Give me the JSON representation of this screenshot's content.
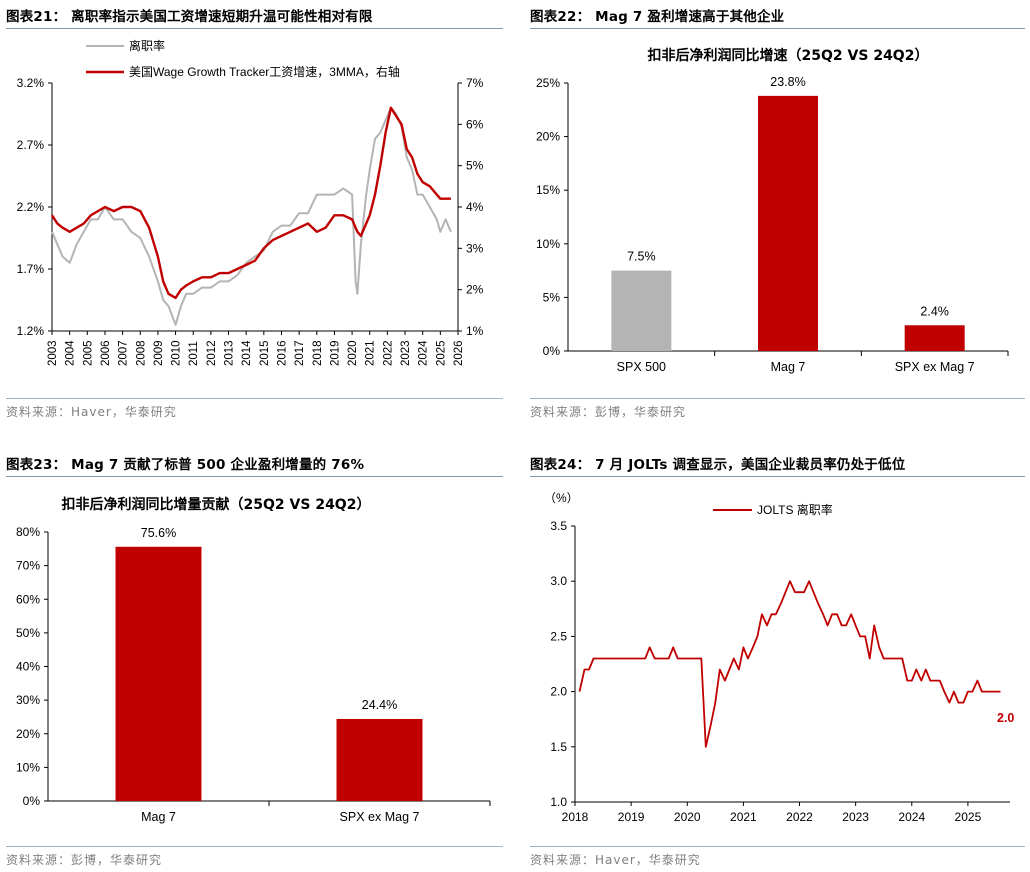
{
  "colors": {
    "red": "#c00000",
    "gray": "#b4b4b4",
    "rule": "#7f9bb8",
    "source": "#808080"
  },
  "panels": {
    "p21": {
      "heading": "图表21：  离职率指示美国工资增速短期升温可能性相对有限",
      "source": "资料来源：Haver，华泰研究",
      "legend_left": "离职率",
      "legend_right": "美国Wage Growth Tracker工资增速，3MMA，右轴"
    },
    "p22": {
      "heading": "图表22：  Mag 7 盈利增速高于其他企业",
      "source": "资料来源：彭博，华泰研究"
    },
    "p23": {
      "heading": "图表23：  Mag 7 贡献了标普 500 企业盈利增量的 76%",
      "source": "资料来源：彭博，华泰研究"
    },
    "p24": {
      "heading": "图表24：  7 月 JOLTs 调查显示，美国企业裁员率仍处于低位",
      "source": "资料来源：Haver，华泰研究"
    }
  },
  "chart_data": [
    {
      "id": "c21",
      "type": "line",
      "title": "",
      "x_start": 2003,
      "x_end": 2026,
      "x_ticks": [
        "2003",
        "2004",
        "2005",
        "2006",
        "2007",
        "2008",
        "2009",
        "2010",
        "2011",
        "2012",
        "2013",
        "2014",
        "2015",
        "2016",
        "2017",
        "2018",
        "2019",
        "2020",
        "2021",
        "2022",
        "2023",
        "2024",
        "2025",
        "2026"
      ],
      "left_axis": {
        "ylim": [
          1.2,
          3.2
        ],
        "ticks": [
          "1.2%",
          "1.7%",
          "2.2%",
          "2.7%",
          "3.2%"
        ],
        "tick_values": [
          1.2,
          1.7,
          2.2,
          2.7,
          3.2
        ]
      },
      "right_axis": {
        "ylim": [
          1,
          7
        ],
        "ticks": [
          "1%",
          "2%",
          "3%",
          "4%",
          "5%",
          "6%",
          "7%"
        ],
        "tick_values": [
          1,
          2,
          3,
          4,
          5,
          6,
          7
        ]
      },
      "series": [
        {
          "name": "离职率",
          "axis": "left",
          "color": "gray",
          "x": [
            2003.0,
            2003.3,
            2003.6,
            2004.0,
            2004.4,
            2004.8,
            2005.2,
            2005.6,
            2006.0,
            2006.5,
            2007.0,
            2007.5,
            2008.0,
            2008.5,
            2009.0,
            2009.3,
            2009.6,
            2010.0,
            2010.3,
            2010.6,
            2011.0,
            2011.5,
            2012.0,
            2012.5,
            2013.0,
            2013.5,
            2014.0,
            2014.5,
            2015.0,
            2015.5,
            2016.0,
            2016.5,
            2017.0,
            2017.5,
            2018.0,
            2018.5,
            2019.0,
            2019.5,
            2020.0,
            2020.2,
            2020.3,
            2020.5,
            2020.8,
            2021.0,
            2021.3,
            2021.6,
            2021.9,
            2022.2,
            2022.5,
            2022.8,
            2023.1,
            2023.4,
            2023.7,
            2024.0,
            2024.4,
            2024.8,
            2025.0,
            2025.3,
            2025.6
          ],
          "values": [
            2.0,
            1.9,
            1.8,
            1.75,
            1.9,
            2.0,
            2.1,
            2.1,
            2.2,
            2.1,
            2.1,
            2.0,
            1.95,
            1.8,
            1.6,
            1.45,
            1.4,
            1.25,
            1.4,
            1.5,
            1.5,
            1.55,
            1.55,
            1.6,
            1.6,
            1.65,
            1.75,
            1.8,
            1.85,
            2.0,
            2.05,
            2.05,
            2.15,
            2.15,
            2.3,
            2.3,
            2.3,
            2.35,
            2.3,
            1.6,
            1.5,
            1.9,
            2.3,
            2.5,
            2.75,
            2.8,
            2.9,
            3.0,
            2.95,
            2.85,
            2.6,
            2.5,
            2.3,
            2.3,
            2.2,
            2.1,
            2.0,
            2.1,
            2.0
          ]
        },
        {
          "name": "美国Wage Growth Tracker工资增速，3MMA，右轴",
          "axis": "right",
          "color": "red",
          "x": [
            2003.0,
            2003.3,
            2003.6,
            2004.0,
            2004.4,
            2004.8,
            2005.2,
            2005.6,
            2006.0,
            2006.5,
            2007.0,
            2007.5,
            2008.0,
            2008.5,
            2009.0,
            2009.3,
            2009.6,
            2010.0,
            2010.3,
            2010.6,
            2011.0,
            2011.5,
            2012.0,
            2012.5,
            2013.0,
            2013.5,
            2014.0,
            2014.5,
            2015.0,
            2015.5,
            2016.0,
            2016.5,
            2017.0,
            2017.5,
            2018.0,
            2018.5,
            2019.0,
            2019.5,
            2020.0,
            2020.2,
            2020.3,
            2020.5,
            2020.8,
            2021.0,
            2021.3,
            2021.6,
            2021.9,
            2022.2,
            2022.5,
            2022.8,
            2023.1,
            2023.4,
            2023.7,
            2024.0,
            2024.4,
            2024.8,
            2025.0,
            2025.3,
            2025.6
          ],
          "values": [
            3.8,
            3.6,
            3.5,
            3.4,
            3.5,
            3.6,
            3.8,
            3.9,
            4.0,
            3.9,
            4.0,
            4.0,
            3.9,
            3.5,
            2.8,
            2.2,
            1.9,
            1.8,
            2.0,
            2.1,
            2.2,
            2.3,
            2.3,
            2.4,
            2.4,
            2.5,
            2.6,
            2.7,
            3.0,
            3.2,
            3.3,
            3.4,
            3.5,
            3.6,
            3.4,
            3.5,
            3.8,
            3.8,
            3.7,
            3.5,
            3.4,
            3.3,
            3.6,
            3.8,
            4.3,
            5.0,
            5.8,
            6.4,
            6.2,
            6.0,
            5.4,
            5.2,
            4.8,
            4.6,
            4.5,
            4.3,
            4.2,
            4.2,
            4.2
          ]
        }
      ]
    },
    {
      "id": "c22",
      "type": "bar",
      "title": "扣非后净利润同比增速（25Q2 VS 24Q2）",
      "categories": [
        "SPX 500",
        "Mag 7",
        "SPX ex Mag 7"
      ],
      "values": [
        7.5,
        23.8,
        2.4
      ],
      "data_labels": [
        "7.5%",
        "23.8%",
        "2.4%"
      ],
      "bar_colors": [
        "gray",
        "red",
        "red"
      ],
      "ylim": [
        0,
        25
      ],
      "ticks": [
        "0%",
        "5%",
        "10%",
        "15%",
        "20%",
        "25%"
      ],
      "tick_values": [
        0,
        5,
        10,
        15,
        20,
        25
      ]
    },
    {
      "id": "c23",
      "type": "bar",
      "title": "扣非后净利润同比增量贡献（25Q2 VS 24Q2）",
      "categories": [
        "Mag 7",
        "SPX ex Mag 7"
      ],
      "values": [
        75.6,
        24.4
      ],
      "data_labels": [
        "75.6%",
        "24.4%"
      ],
      "bar_colors": [
        "red",
        "red"
      ],
      "ylim": [
        0,
        80
      ],
      "ticks": [
        "0%",
        "10%",
        "20%",
        "30%",
        "40%",
        "50%",
        "60%",
        "70%",
        "80%"
      ],
      "tick_values": [
        0,
        10,
        20,
        30,
        40,
        50,
        60,
        70,
        80
      ]
    },
    {
      "id": "c24",
      "type": "line",
      "title": "",
      "unit_label": "（%）",
      "legend": "JOLTS 离职率",
      "end_label": "2.0",
      "ylim": [
        1.0,
        3.5
      ],
      "ticks": [
        "1.0",
        "1.5",
        "2.0",
        "2.5",
        "3.0",
        "3.5"
      ],
      "tick_values": [
        1.0,
        1.5,
        2.0,
        2.5,
        3.0,
        3.5
      ],
      "x_ticks": [
        "2018",
        "2019",
        "2020",
        "2021",
        "2022",
        "2023",
        "2024",
        "2025"
      ],
      "x_tick_values": [
        2018,
        2019,
        2020,
        2021,
        2022,
        2023,
        2024,
        2025
      ],
      "xlim": [
        2018,
        2025.75
      ],
      "series": [
        {
          "name": "JOLTS 离职率",
          "color": "red",
          "x": [
            2018.08,
            2018.17,
            2018.25,
            2018.33,
            2018.42,
            2018.5,
            2018.58,
            2018.67,
            2018.75,
            2018.83,
            2018.92,
            2019.0,
            2019.08,
            2019.17,
            2019.25,
            2019.33,
            2019.42,
            2019.5,
            2019.58,
            2019.67,
            2019.75,
            2019.83,
            2019.92,
            2020.0,
            2020.08,
            2020.17,
            2020.25,
            2020.33,
            2020.42,
            2020.5,
            2020.58,
            2020.67,
            2020.75,
            2020.83,
            2020.92,
            2021.0,
            2021.08,
            2021.17,
            2021.25,
            2021.33,
            2021.42,
            2021.5,
            2021.58,
            2021.67,
            2021.75,
            2021.83,
            2021.92,
            2022.0,
            2022.08,
            2022.17,
            2022.25,
            2022.33,
            2022.42,
            2022.5,
            2022.58,
            2022.67,
            2022.75,
            2022.83,
            2022.92,
            2023.0,
            2023.08,
            2023.17,
            2023.25,
            2023.33,
            2023.42,
            2023.5,
            2023.58,
            2023.67,
            2023.75,
            2023.83,
            2023.92,
            2024.0,
            2024.08,
            2024.17,
            2024.25,
            2024.33,
            2024.42,
            2024.5,
            2024.58,
            2024.67,
            2024.75,
            2024.83,
            2024.92,
            2025.0,
            2025.08,
            2025.17,
            2025.25,
            2025.33,
            2025.42,
            2025.5,
            2025.58
          ],
          "values": [
            2.0,
            2.2,
            2.2,
            2.3,
            2.3,
            2.3,
            2.3,
            2.3,
            2.3,
            2.3,
            2.3,
            2.3,
            2.3,
            2.3,
            2.3,
            2.4,
            2.3,
            2.3,
            2.3,
            2.3,
            2.4,
            2.3,
            2.3,
            2.3,
            2.3,
            2.3,
            2.3,
            1.5,
            1.7,
            1.9,
            2.2,
            2.1,
            2.2,
            2.3,
            2.2,
            2.4,
            2.3,
            2.4,
            2.5,
            2.7,
            2.6,
            2.7,
            2.7,
            2.8,
            2.9,
            3.0,
            2.9,
            2.9,
            2.9,
            3.0,
            2.9,
            2.8,
            2.7,
            2.6,
            2.7,
            2.7,
            2.6,
            2.6,
            2.7,
            2.6,
            2.5,
            2.5,
            2.3,
            2.6,
            2.4,
            2.3,
            2.3,
            2.3,
            2.3,
            2.3,
            2.1,
            2.1,
            2.2,
            2.1,
            2.2,
            2.1,
            2.1,
            2.1,
            2.0,
            1.9,
            2.0,
            1.9,
            1.9,
            2.0,
            2.0,
            2.1,
            2.0,
            2.0,
            2.0,
            2.0,
            2.0
          ]
        }
      ]
    }
  ]
}
